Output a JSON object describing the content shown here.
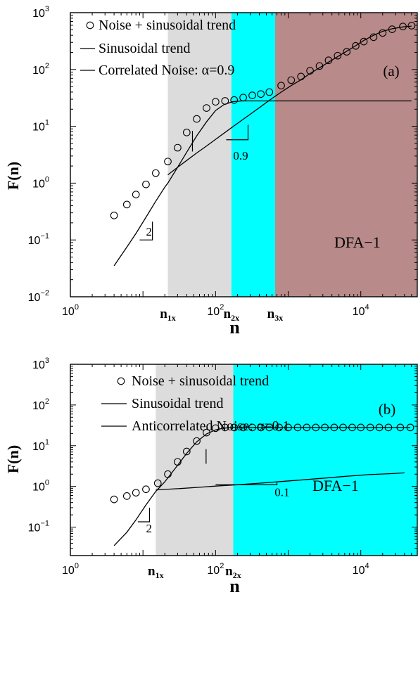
{
  "chart_data": [
    {
      "panel_label": "(a)",
      "type": "scatter",
      "log_x": true,
      "log_y": true,
      "xlabel": "n",
      "ylabel": "F(n)",
      "xlim": [
        1,
        60000
      ],
      "ylim": [
        0.01,
        1000
      ],
      "x_ticks": [
        {
          "value": 1,
          "base": "10",
          "exp": "0"
        },
        {
          "value": 100,
          "base": "10",
          "exp": "2"
        },
        {
          "value": 10000,
          "base": "10",
          "exp": "4"
        }
      ],
      "y_ticks": [
        {
          "value": 0.01,
          "base": "10",
          "exp": "−2"
        },
        {
          "value": 0.1,
          "base": "10",
          "exp": "−1"
        },
        {
          "value": 1,
          "base": "10",
          "exp": "0"
        },
        {
          "value": 10,
          "base": "10",
          "exp": "1"
        },
        {
          "value": 100,
          "base": "10",
          "exp": "2"
        },
        {
          "value": 1000,
          "base": "10",
          "exp": "3"
        }
      ],
      "crossover_labels": [
        {
          "x": 22,
          "main": "n",
          "sub": "1x"
        },
        {
          "x": 165,
          "main": "n",
          "sub": "2x"
        },
        {
          "x": 660,
          "main": "n",
          "sub": "3x"
        }
      ],
      "regions": [
        {
          "x0": 22,
          "x1": 165,
          "color": "#dcdcdc"
        },
        {
          "x0": 165,
          "x1": 660,
          "color": "#00ffff"
        },
        {
          "x0": 660,
          "x1": 60000,
          "color": "#b88a8a"
        }
      ],
      "legend": [
        {
          "marker": "circle",
          "label": "Noise + sinusoidal trend"
        },
        {
          "marker": "line",
          "label": "Sinusoidal trend"
        },
        {
          "marker": "line",
          "label": "Correlated Noise: α=0.9"
        }
      ],
      "annotation": "DFA−1",
      "slope_labels": [
        {
          "text": "2",
          "x": 11,
          "y": 0.12
        },
        {
          "text": "0.9",
          "x": 175,
          "y": 2.6
        }
      ],
      "series": [
        {
          "name": "Noise + sinusoidal trend",
          "kind": "markers",
          "x": [
            4,
            6,
            8,
            11,
            15,
            22,
            30,
            40,
            55,
            75,
            100,
            135,
            180,
            240,
            320,
            420,
            550,
            800,
            1100,
            1500,
            2000,
            2700,
            3600,
            4800,
            6400,
            8500,
            11000,
            15000,
            20000,
            27000,
            38000,
            50000
          ],
          "y": [
            0.27,
            0.42,
            0.63,
            0.95,
            1.5,
            2.4,
            4.2,
            7.8,
            13.5,
            21,
            27,
            28,
            29,
            32,
            35,
            37,
            40,
            52,
            65,
            75,
            95,
            115,
            145,
            175,
            205,
            260,
            310,
            370,
            440,
            510,
            570,
            590
          ]
        },
        {
          "name": "Sinusoidal trend",
          "kind": "line",
          "x": [
            4,
            6,
            8,
            11,
            15,
            20,
            22,
            30,
            40,
            55,
            75,
            100,
            130,
            170,
            230,
            300,
            500,
            1000,
            5000,
            20000,
            50000
          ],
          "y": [
            0.035,
            0.075,
            0.13,
            0.25,
            0.48,
            0.85,
            1.0,
            1.9,
            3.5,
            6.8,
            12,
            19,
            24,
            27,
            28,
            28,
            28,
            28,
            28,
            28,
            28
          ]
        },
        {
          "name": "Correlated Noise: α=0.9",
          "kind": "line",
          "x": [
            22,
            30,
            40,
            55,
            75,
            100,
            135,
            180,
            240,
            320,
            420,
            550,
            800,
            1100,
            1500,
            2000,
            2700,
            3600,
            4800,
            6400,
            8500,
            11000,
            15000,
            20000,
            27000,
            38000,
            50000
          ],
          "y": [
            1.4,
            1.9,
            2.5,
            3.4,
            4.5,
            5.9,
            7.8,
            10.2,
            13.3,
            17.3,
            22.3,
            28.6,
            40,
            52,
            66,
            85,
            107,
            135,
            168,
            210,
            262,
            325,
            400,
            470,
            520,
            560,
            580
          ]
        }
      ]
    },
    {
      "panel_label": "(b)",
      "type": "scatter",
      "log_x": true,
      "log_y": true,
      "xlabel": "n",
      "ylabel": "F(n)",
      "xlim": [
        1,
        60000
      ],
      "ylim": [
        0.02,
        1000
      ],
      "x_ticks": [
        {
          "value": 1,
          "base": "10",
          "exp": "0"
        },
        {
          "value": 100,
          "base": "10",
          "exp": "2"
        },
        {
          "value": 10000,
          "base": "10",
          "exp": "4"
        }
      ],
      "y_ticks": [
        {
          "value": 0.1,
          "base": "10",
          "exp": "−1"
        },
        {
          "value": 1,
          "base": "10",
          "exp": "0"
        },
        {
          "value": 10,
          "base": "10",
          "exp": "1"
        },
        {
          "value": 100,
          "base": "10",
          "exp": "2"
        },
        {
          "value": 1000,
          "base": "10",
          "exp": "3"
        }
      ],
      "crossover_labels": [
        {
          "x": 15,
          "main": "n",
          "sub": "1x"
        },
        {
          "x": 175,
          "main": "n",
          "sub": "2x"
        }
      ],
      "regions": [
        {
          "x0": 15,
          "x1": 175,
          "color": "#dcdcdc"
        },
        {
          "x0": 175,
          "x1": 60000,
          "color": "#00ffff"
        }
      ],
      "legend": [
        {
          "marker": "circle",
          "label": "Noise + sinusoidal trend"
        },
        {
          "marker": "line",
          "label": "Sinusoidal trend"
        },
        {
          "marker": "line",
          "label": "Anticorrelated Noise: α=0.1"
        }
      ],
      "annotation": "DFA−1",
      "slope_labels": [
        {
          "text": "2",
          "x": 11,
          "y": 0.075
        },
        {
          "text": "0.1",
          "x": 650,
          "y": 0.58
        }
      ],
      "series": [
        {
          "name": "Noise + sinusoidal trend",
          "kind": "markers",
          "x": [
            4,
            6,
            8,
            11,
            16,
            22,
            30,
            40,
            55,
            75,
            100,
            135,
            180,
            240,
            320,
            420,
            550,
            750,
            1000,
            1350,
            1800,
            2400,
            3200,
            4300,
            5700,
            7600,
            10000,
            13500,
            18000,
            24000,
            35000,
            48000
          ],
          "y": [
            0.48,
            0.58,
            0.7,
            0.85,
            1.2,
            2.0,
            4.0,
            7.2,
            13,
            21,
            27,
            28,
            28,
            28,
            28,
            28,
            28,
            28,
            28,
            28,
            28,
            28,
            28,
            28,
            28,
            28,
            28,
            28,
            28,
            28,
            28,
            28
          ]
        },
        {
          "name": "Sinusoidal trend",
          "kind": "line",
          "x": [
            4,
            6,
            8,
            11,
            15,
            20,
            30,
            40,
            55,
            75,
            100,
            130,
            170,
            230,
            300,
            500,
            1000,
            5000,
            20000,
            48000
          ],
          "y": [
            0.035,
            0.075,
            0.15,
            0.35,
            0.75,
            1.3,
            3.3,
            6.5,
            12.5,
            19.5,
            24.5,
            27,
            28,
            28,
            28,
            28,
            28,
            28,
            28,
            28
          ]
        },
        {
          "name": "Anticorrelated Noise: α=0.1",
          "kind": "line",
          "x": [
            15,
            30,
            60,
            100,
            200,
            400,
            800,
            1600,
            3200,
            6400,
            12800,
            25000,
            40000
          ],
          "y": [
            0.82,
            0.88,
            0.95,
            1.02,
            1.1,
            1.2,
            1.32,
            1.45,
            1.6,
            1.78,
            1.95,
            2.05,
            2.15
          ]
        }
      ]
    }
  ]
}
